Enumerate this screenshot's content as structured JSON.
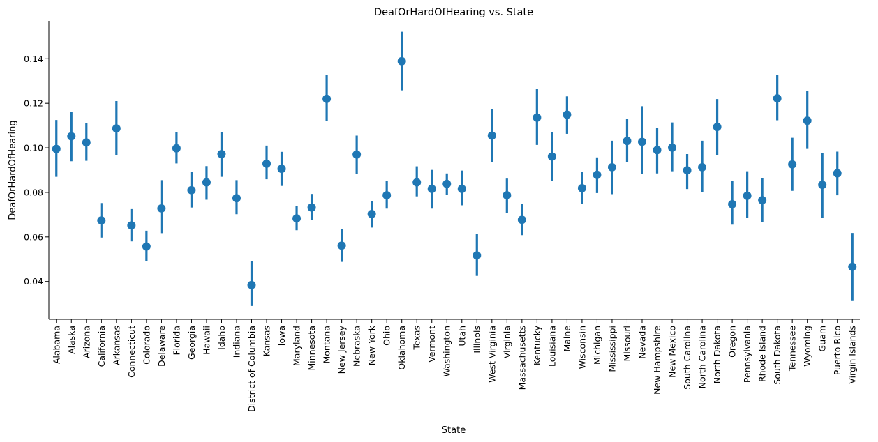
{
  "chart_data": {
    "type": "scatter",
    "title": "DeafOrHardOfHearing vs. State",
    "xlabel": "State",
    "ylabel": "DeafOrHardOfHearing",
    "ylim": [
      0.023,
      0.157
    ],
    "yticks": [
      0.04,
      0.06,
      0.08,
      0.1,
      0.12,
      0.14
    ],
    "ytick_labels": [
      "0.04",
      "0.06",
      "0.08",
      "0.10",
      "0.12",
      "0.14"
    ],
    "grid": false,
    "color": "#1f77b4",
    "error_bars": true,
    "points": [
      {
        "x": "Alabama",
        "y": 0.0995,
        "lo": 0.087,
        "hi": 0.1125
      },
      {
        "x": "Alaska",
        "y": 0.1052,
        "lo": 0.094,
        "hi": 0.1162
      },
      {
        "x": "Arizona",
        "y": 0.1024,
        "lo": 0.0942,
        "hi": 0.111
      },
      {
        "x": "California",
        "y": 0.0674,
        "lo": 0.0597,
        "hi": 0.0752
      },
      {
        "x": "Arkansas",
        "y": 0.1087,
        "lo": 0.0968,
        "hi": 0.121
      },
      {
        "x": "Connecticut",
        "y": 0.0652,
        "lo": 0.058,
        "hi": 0.0725
      },
      {
        "x": "Colorado",
        "y": 0.0557,
        "lo": 0.0492,
        "hi": 0.0628
      },
      {
        "x": "Delaware",
        "y": 0.0728,
        "lo": 0.0617,
        "hi": 0.0855
      },
      {
        "x": "Florida",
        "y": 0.0998,
        "lo": 0.093,
        "hi": 0.1072
      },
      {
        "x": "Georgia",
        "y": 0.081,
        "lo": 0.0732,
        "hi": 0.0893
      },
      {
        "x": "Hawaii",
        "y": 0.0845,
        "lo": 0.0767,
        "hi": 0.0918
      },
      {
        "x": "Idaho",
        "y": 0.0972,
        "lo": 0.087,
        "hi": 0.1072
      },
      {
        "x": "Indiana",
        "y": 0.0774,
        "lo": 0.0702,
        "hi": 0.0855
      },
      {
        "x": "District of Columbia",
        "y": 0.0384,
        "lo": 0.029,
        "hi": 0.049
      },
      {
        "x": "Kansas",
        "y": 0.0929,
        "lo": 0.0859,
        "hi": 0.101
      },
      {
        "x": "Iowa",
        "y": 0.0906,
        "lo": 0.0829,
        "hi": 0.0982
      },
      {
        "x": "Maryland",
        "y": 0.0683,
        "lo": 0.063,
        "hi": 0.074
      },
      {
        "x": "Minnesota",
        "y": 0.0732,
        "lo": 0.0675,
        "hi": 0.0793
      },
      {
        "x": "Montana",
        "y": 0.122,
        "lo": 0.112,
        "hi": 0.1326
      },
      {
        "x": "New Jersey",
        "y": 0.0561,
        "lo": 0.0488,
        "hi": 0.0637
      },
      {
        "x": "Nebraska",
        "y": 0.097,
        "lo": 0.0882,
        "hi": 0.1055
      },
      {
        "x": "New York",
        "y": 0.0703,
        "lo": 0.0642,
        "hi": 0.0762
      },
      {
        "x": "Ohio",
        "y": 0.0787,
        "lo": 0.0727,
        "hi": 0.085
      },
      {
        "x": "Oklahoma",
        "y": 0.1389,
        "lo": 0.1258,
        "hi": 0.1521
      },
      {
        "x": "Texas",
        "y": 0.0845,
        "lo": 0.0782,
        "hi": 0.0917
      },
      {
        "x": "Vermont",
        "y": 0.0816,
        "lo": 0.0727,
        "hi": 0.0901
      },
      {
        "x": "Washington",
        "y": 0.0838,
        "lo": 0.079,
        "hi": 0.0885
      },
      {
        "x": "Utah",
        "y": 0.0816,
        "lo": 0.0742,
        "hi": 0.0898
      },
      {
        "x": "Illinois",
        "y": 0.0517,
        "lo": 0.0425,
        "hi": 0.0612
      },
      {
        "x": "West Virginia",
        "y": 0.1055,
        "lo": 0.0937,
        "hi": 0.1173
      },
      {
        "x": "Virginia",
        "y": 0.0787,
        "lo": 0.0708,
        "hi": 0.0862
      },
      {
        "x": "Massachusetts",
        "y": 0.0677,
        "lo": 0.0608,
        "hi": 0.0747
      },
      {
        "x": "Kentucky",
        "y": 0.1136,
        "lo": 0.1013,
        "hi": 0.1265
      },
      {
        "x": "Louisiana",
        "y": 0.0961,
        "lo": 0.0852,
        "hi": 0.1072
      },
      {
        "x": "Maine",
        "y": 0.1149,
        "lo": 0.1063,
        "hi": 0.1231
      },
      {
        "x": "Wisconsin",
        "y": 0.0819,
        "lo": 0.0747,
        "hi": 0.0891
      },
      {
        "x": "Michigan",
        "y": 0.0879,
        "lo": 0.0797,
        "hi": 0.0957
      },
      {
        "x": "Mississippi",
        "y": 0.0913,
        "lo": 0.0792,
        "hi": 0.1032
      },
      {
        "x": "Missouri",
        "y": 0.1031,
        "lo": 0.0935,
        "hi": 0.1131
      },
      {
        "x": "Nevada",
        "y": 0.1027,
        "lo": 0.0882,
        "hi": 0.1187
      },
      {
        "x": "New Hampshire",
        "y": 0.099,
        "lo": 0.0885,
        "hi": 0.1089
      },
      {
        "x": "New Mexico",
        "y": 0.1001,
        "lo": 0.0895,
        "hi": 0.1114
      },
      {
        "x": "South Carolina",
        "y": 0.0899,
        "lo": 0.0815,
        "hi": 0.0972
      },
      {
        "x": "North Carolina",
        "y": 0.0913,
        "lo": 0.0802,
        "hi": 0.1032
      },
      {
        "x": "North Dakota",
        "y": 0.1094,
        "lo": 0.0968,
        "hi": 0.1219
      },
      {
        "x": "Oregon",
        "y": 0.0747,
        "lo": 0.0655,
        "hi": 0.0852
      },
      {
        "x": "Pennsylvania",
        "y": 0.0785,
        "lo": 0.0687,
        "hi": 0.0895
      },
      {
        "x": "Rhode Island",
        "y": 0.0765,
        "lo": 0.0667,
        "hi": 0.0865
      },
      {
        "x": "South Dakota",
        "y": 0.1222,
        "lo": 0.1124,
        "hi": 0.1326
      },
      {
        "x": "Tennessee",
        "y": 0.0926,
        "lo": 0.0807,
        "hi": 0.1045
      },
      {
        "x": "Wyoming",
        "y": 0.1122,
        "lo": 0.0995,
        "hi": 0.1256
      },
      {
        "x": "Guam",
        "y": 0.0834,
        "lo": 0.0685,
        "hi": 0.0977
      },
      {
        "x": "Puerto Rico",
        "y": 0.0886,
        "lo": 0.0787,
        "hi": 0.0983
      },
      {
        "x": "Virgin Islands",
        "y": 0.0466,
        "lo": 0.0312,
        "hi": 0.0618
      }
    ]
  }
}
